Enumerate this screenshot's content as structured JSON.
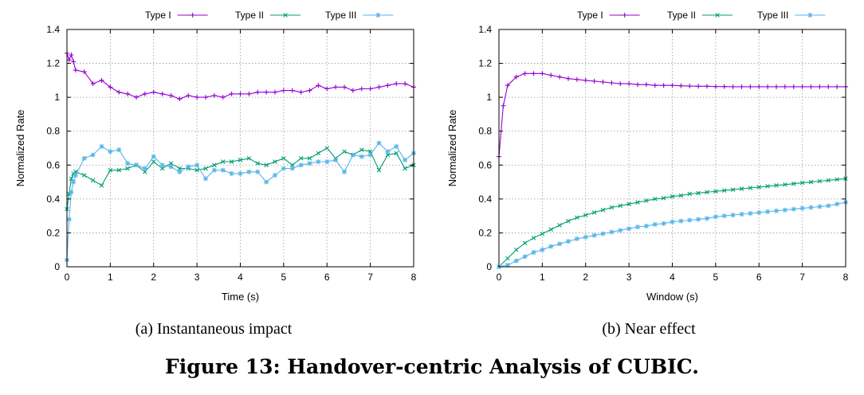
{
  "figure": {
    "caption": "Figure 13: Handover-centric Analysis of CUBIC."
  },
  "colors": {
    "Type I": "#9400d3",
    "Type II": "#009e73",
    "Type III": "#56b4e9"
  },
  "chart_data": [
    {
      "type": "line",
      "subcaption": "(a)  Instantaneous impact",
      "xlabel": "Time (s)",
      "ylabel": "Normalized Rate",
      "xlim": [
        0,
        8
      ],
      "ylim": [
        0,
        1.4
      ],
      "xticks": [
        0,
        1,
        2,
        3,
        4,
        5,
        6,
        7,
        8
      ],
      "yticks": [
        0,
        0.2,
        0.4,
        0.6,
        0.8,
        1,
        1.2,
        1.4
      ],
      "ytick_labels": [
        "0",
        "0.2",
        "0.4",
        "0.6",
        "0.8",
        "1",
        "1.2",
        "1.4"
      ],
      "grid": true,
      "legend": "top",
      "series": [
        {
          "name": "Type I",
          "marker": "plus",
          "x": [
            0,
            0.05,
            0.1,
            0.15,
            0.2,
            0.4,
            0.6,
            0.8,
            1.0,
            1.2,
            1.4,
            1.6,
            1.8,
            2.0,
            2.2,
            2.4,
            2.6,
            2.8,
            3.0,
            3.2,
            3.4,
            3.6,
            3.8,
            4.0,
            4.2,
            4.4,
            4.6,
            4.8,
            5.0,
            5.2,
            5.4,
            5.6,
            5.8,
            6.0,
            6.2,
            6.4,
            6.6,
            6.8,
            7.0,
            7.2,
            7.4,
            7.6,
            7.8,
            8.0
          ],
          "y": [
            1.26,
            1.22,
            1.25,
            1.21,
            1.16,
            1.15,
            1.08,
            1.1,
            1.06,
            1.03,
            1.02,
            1.0,
            1.02,
            1.03,
            1.02,
            1.01,
            0.99,
            1.01,
            1.0,
            1.0,
            1.01,
            1.0,
            1.02,
            1.02,
            1.02,
            1.03,
            1.03,
            1.03,
            1.04,
            1.04,
            1.03,
            1.04,
            1.07,
            1.05,
            1.06,
            1.06,
            1.04,
            1.05,
            1.05,
            1.06,
            1.07,
            1.08,
            1.08,
            1.06
          ]
        },
        {
          "name": "Type II",
          "marker": "x",
          "x": [
            0,
            0.05,
            0.1,
            0.15,
            0.2,
            0.4,
            0.6,
            0.8,
            1.0,
            1.2,
            1.4,
            1.6,
            1.8,
            2.0,
            2.2,
            2.4,
            2.6,
            2.8,
            3.0,
            3.2,
            3.4,
            3.6,
            3.8,
            4.0,
            4.2,
            4.4,
            4.6,
            4.8,
            5.0,
            5.2,
            5.4,
            5.6,
            5.8,
            6.0,
            6.2,
            6.4,
            6.6,
            6.8,
            7.0,
            7.2,
            7.4,
            7.6,
            7.8,
            8.0
          ],
          "y": [
            0.34,
            0.43,
            0.52,
            0.55,
            0.56,
            0.54,
            0.51,
            0.48,
            0.57,
            0.57,
            0.58,
            0.6,
            0.56,
            0.62,
            0.58,
            0.61,
            0.58,
            0.58,
            0.57,
            0.58,
            0.6,
            0.62,
            0.62,
            0.63,
            0.64,
            0.61,
            0.6,
            0.62,
            0.64,
            0.6,
            0.64,
            0.64,
            0.67,
            0.7,
            0.64,
            0.68,
            0.66,
            0.69,
            0.68,
            0.57,
            0.66,
            0.67,
            0.58,
            0.6
          ]
        },
        {
          "name": "Type III",
          "marker": "star",
          "x": [
            0,
            0.05,
            0.1,
            0.15,
            0.2,
            0.4,
            0.6,
            0.8,
            1.0,
            1.2,
            1.4,
            1.6,
            1.8,
            2.0,
            2.2,
            2.4,
            2.6,
            2.8,
            3.0,
            3.2,
            3.4,
            3.6,
            3.8,
            4.0,
            4.2,
            4.4,
            4.6,
            4.8,
            5.0,
            5.2,
            5.4,
            5.6,
            5.8,
            6.0,
            6.2,
            6.4,
            6.6,
            6.8,
            7.0,
            7.2,
            7.4,
            7.6,
            7.8,
            8.0
          ],
          "y": [
            0.04,
            0.28,
            0.44,
            0.5,
            0.54,
            0.64,
            0.66,
            0.71,
            0.68,
            0.69,
            0.61,
            0.6,
            0.58,
            0.65,
            0.6,
            0.59,
            0.56,
            0.59,
            0.6,
            0.52,
            0.57,
            0.57,
            0.55,
            0.55,
            0.56,
            0.56,
            0.5,
            0.54,
            0.58,
            0.58,
            0.6,
            0.61,
            0.62,
            0.62,
            0.63,
            0.56,
            0.66,
            0.65,
            0.66,
            0.73,
            0.68,
            0.71,
            0.63,
            0.67
          ]
        }
      ]
    },
    {
      "type": "line",
      "subcaption": "(b)  Near effect",
      "xlabel": "Window (s)",
      "ylabel": "Normalized Rate",
      "xlim": [
        0,
        8
      ],
      "ylim": [
        0,
        1.4
      ],
      "xticks": [
        0,
        1,
        2,
        3,
        4,
        5,
        6,
        7,
        8
      ],
      "yticks": [
        0,
        0.2,
        0.4,
        0.6,
        0.8,
        1,
        1.2,
        1.4
      ],
      "ytick_labels": [
        "0",
        "0.2",
        "0.4",
        "0.6",
        "0.8",
        "1",
        "1.2",
        "1.4"
      ],
      "grid": true,
      "legend": "top",
      "series": [
        {
          "name": "Type I",
          "marker": "plus",
          "x": [
            0,
            0.1,
            0.2,
            0.4,
            0.6,
            0.8,
            1.0,
            1.2,
            1.4,
            1.6,
            1.8,
            2.0,
            2.2,
            2.4,
            2.6,
            2.8,
            3.0,
            3.2,
            3.4,
            3.6,
            3.8,
            4.0,
            4.2,
            4.4,
            4.6,
            4.8,
            5.0,
            5.2,
            5.4,
            5.6,
            5.8,
            6.0,
            6.2,
            6.4,
            6.6,
            6.8,
            7.0,
            7.2,
            7.4,
            7.6,
            7.8,
            8.0
          ],
          "y": [
            0.65,
            0.95,
            1.07,
            1.12,
            1.14,
            1.14,
            1.14,
            1.13,
            1.12,
            1.11,
            1.105,
            1.1,
            1.095,
            1.09,
            1.085,
            1.08,
            1.08,
            1.075,
            1.075,
            1.07,
            1.07,
            1.07,
            1.068,
            1.066,
            1.065,
            1.065,
            1.063,
            1.063,
            1.062,
            1.062,
            1.062,
            1.062,
            1.062,
            1.062,
            1.062,
            1.062,
            1.062,
            1.062,
            1.062,
            1.062,
            1.062,
            1.062
          ]
        },
        {
          "name": "Type II",
          "marker": "x",
          "x": [
            0,
            0.2,
            0.4,
            0.6,
            0.8,
            1.0,
            1.2,
            1.4,
            1.6,
            1.8,
            2.0,
            2.2,
            2.4,
            2.6,
            2.8,
            3.0,
            3.2,
            3.4,
            3.6,
            3.8,
            4.0,
            4.2,
            4.4,
            4.6,
            4.8,
            5.0,
            5.2,
            5.4,
            5.6,
            5.8,
            6.0,
            6.2,
            6.4,
            6.6,
            6.8,
            7.0,
            7.2,
            7.4,
            7.6,
            7.8,
            8.0
          ],
          "y": [
            0.0,
            0.05,
            0.1,
            0.14,
            0.17,
            0.195,
            0.22,
            0.245,
            0.27,
            0.29,
            0.305,
            0.32,
            0.335,
            0.35,
            0.36,
            0.37,
            0.38,
            0.39,
            0.4,
            0.405,
            0.415,
            0.42,
            0.43,
            0.435,
            0.44,
            0.445,
            0.45,
            0.455,
            0.46,
            0.465,
            0.47,
            0.475,
            0.48,
            0.485,
            0.49,
            0.495,
            0.5,
            0.505,
            0.51,
            0.515,
            0.52
          ]
        },
        {
          "name": "Type III",
          "marker": "star",
          "x": [
            0,
            0.2,
            0.4,
            0.6,
            0.8,
            1.0,
            1.2,
            1.4,
            1.6,
            1.8,
            2.0,
            2.2,
            2.4,
            2.6,
            2.8,
            3.0,
            3.2,
            3.4,
            3.6,
            3.8,
            4.0,
            4.2,
            4.4,
            4.6,
            4.8,
            5.0,
            5.2,
            5.4,
            5.6,
            5.8,
            6.0,
            6.2,
            6.4,
            6.6,
            6.8,
            7.0,
            7.2,
            7.4,
            7.6,
            7.8,
            8.0
          ],
          "y": [
            0.0,
            0.01,
            0.035,
            0.06,
            0.085,
            0.1,
            0.12,
            0.135,
            0.15,
            0.165,
            0.175,
            0.185,
            0.195,
            0.205,
            0.215,
            0.225,
            0.235,
            0.24,
            0.25,
            0.255,
            0.265,
            0.27,
            0.275,
            0.28,
            0.285,
            0.295,
            0.3,
            0.305,
            0.31,
            0.315,
            0.32,
            0.325,
            0.33,
            0.335,
            0.34,
            0.345,
            0.35,
            0.355,
            0.36,
            0.37,
            0.38
          ]
        }
      ]
    }
  ]
}
